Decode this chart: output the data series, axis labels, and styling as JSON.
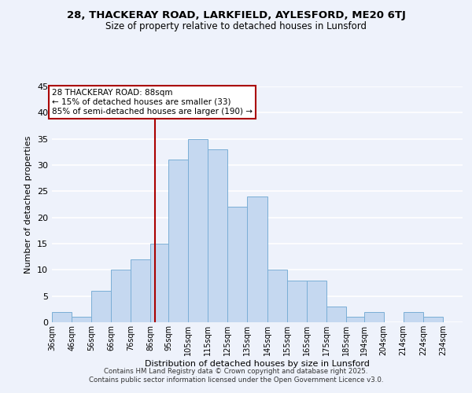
{
  "title": "28, THACKERAY ROAD, LARKFIELD, AYLESFORD, ME20 6TJ",
  "subtitle": "Size of property relative to detached houses in Lunsford",
  "xlabel": "Distribution of detached houses by size in Lunsford",
  "ylabel": "Number of detached properties",
  "bar_labels": [
    "36sqm",
    "46sqm",
    "56sqm",
    "66sqm",
    "76sqm",
    "86sqm",
    "95sqm",
    "105sqm",
    "115sqm",
    "125sqm",
    "135sqm",
    "145sqm",
    "155sqm",
    "165sqm",
    "175sqm",
    "185sqm",
    "194sqm",
    "204sqm",
    "214sqm",
    "224sqm",
    "234sqm"
  ],
  "bar_values": [
    2,
    1,
    6,
    10,
    12,
    15,
    31,
    35,
    33,
    22,
    24,
    10,
    8,
    8,
    3,
    1,
    2,
    0,
    2,
    1,
    0
  ],
  "bar_color": "#c5d8f0",
  "bar_edgecolor": "#7aaed6",
  "background_color": "#eef2fb",
  "grid_color": "#ffffff",
  "ylim": [
    0,
    45
  ],
  "yticks": [
    0,
    5,
    10,
    15,
    20,
    25,
    30,
    35,
    40,
    45
  ],
  "bin_edges": [
    36,
    46,
    56,
    66,
    76,
    86,
    95,
    105,
    115,
    125,
    135,
    145,
    155,
    165,
    175,
    185,
    194,
    204,
    214,
    224,
    234,
    244
  ],
  "vline_x": 88,
  "vline_color": "#aa0000",
  "annotation_text": "28 THACKERAY ROAD: 88sqm\n← 15% of detached houses are smaller (33)\n85% of semi-detached houses are larger (190) →",
  "annotation_box_edgecolor": "#aa0000",
  "footer_line1": "Contains HM Land Registry data © Crown copyright and database right 2025.",
  "footer_line2": "Contains public sector information licensed under the Open Government Licence v3.0."
}
